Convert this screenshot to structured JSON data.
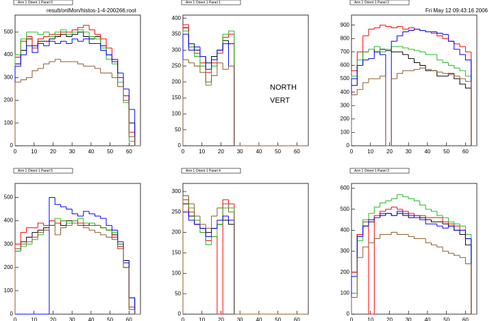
{
  "filename": "result/onlMon/histos-1-4-200266.root",
  "timestamp": "Fri May 12 09:43:16 2006",
  "annotations": [
    "NORTH",
    "VERT"
  ],
  "chart_data": [
    {
      "type": "histogram",
      "title": "Arm 1 Orient 1 Panel 0",
      "bins": [
        0,
        3,
        6,
        9,
        12,
        15,
        18,
        21,
        24,
        27,
        30,
        33,
        36,
        39,
        42,
        45,
        48,
        51,
        54,
        57,
        60,
        63,
        66
      ],
      "xlim": [
        0,
        66
      ],
      "ylim": [
        0,
        575
      ],
      "xticks": [
        0,
        10,
        20,
        30,
        40,
        50,
        60
      ],
      "yticks": [
        0,
        100,
        200,
        300,
        400,
        500
      ],
      "series": [
        {
          "color": "#000000",
          "values": [
            360,
            420,
            470,
            440,
            460,
            460,
            470,
            480,
            490,
            480,
            490,
            500,
            480,
            470,
            480,
            440,
            400,
            380,
            300,
            220,
            100,
            0
          ]
        },
        {
          "color": "#ff0000",
          "values": [
            390,
            460,
            480,
            430,
            470,
            480,
            490,
            490,
            500,
            500,
            510,
            520,
            530,
            510,
            490,
            470,
            430,
            380,
            300,
            220,
            60,
            0
          ]
        },
        {
          "color": "#22bb22",
          "values": [
            400,
            470,
            500,
            500,
            490,
            500,
            480,
            500,
            510,
            490,
            500,
            510,
            500,
            480,
            470,
            430,
            380,
            360,
            280,
            190,
            20,
            0
          ]
        },
        {
          "color": "#0000ff",
          "values": [
            350,
            400,
            440,
            410,
            450,
            440,
            460,
            450,
            460,
            450,
            470,
            460,
            470,
            450,
            450,
            420,
            400,
            370,
            320,
            250,
            160,
            0
          ]
        },
        {
          "color": "#8b5a2b",
          "values": [
            280,
            290,
            300,
            330,
            340,
            360,
            370,
            380,
            370,
            370,
            370,
            360,
            350,
            350,
            340,
            320,
            320,
            300,
            260,
            200,
            40,
            0
          ]
        }
      ]
    },
    {
      "type": "histogram",
      "title": "Arm 1 Orient 1 Panel 1",
      "bins": [
        0,
        3,
        6,
        9,
        12,
        15,
        18,
        21,
        24,
        27,
        30,
        33,
        36,
        39,
        42,
        45,
        48,
        51,
        54,
        57,
        60,
        63,
        66
      ],
      "xlim": [
        0,
        66
      ],
      "ylim": [
        0,
        410
      ],
      "xticks": [
        0,
        10,
        20,
        30,
        40,
        50,
        60
      ],
      "yticks": [
        0,
        50,
        100,
        150,
        200,
        250,
        300,
        350,
        400
      ],
      "series": [
        {
          "color": "#000000",
          "values": [
            370,
            320,
            300,
            280,
            260,
            280,
            300,
            330,
            320,
            0,
            0,
            0,
            0,
            0,
            0,
            0,
            0,
            0,
            0,
            0,
            0,
            0
          ]
        },
        {
          "color": "#ff0000",
          "values": [
            380,
            310,
            290,
            260,
            230,
            260,
            290,
            340,
            350,
            0,
            0,
            0,
            0,
            0,
            0,
            0,
            0,
            0,
            0,
            0,
            0,
            0
          ]
        },
        {
          "color": "#22bb22",
          "values": [
            360,
            310,
            280,
            250,
            190,
            250,
            300,
            350,
            360,
            0,
            0,
            0,
            0,
            0,
            0,
            0,
            0,
            0,
            0,
            0,
            0,
            0
          ]
        },
        {
          "color": "#0000ff",
          "values": [
            350,
            300,
            310,
            280,
            240,
            270,
            300,
            320,
            250,
            0,
            0,
            0,
            0,
            0,
            0,
            0,
            0,
            0,
            0,
            0,
            0,
            0
          ]
        },
        {
          "color": "#8b5a2b",
          "values": [
            270,
            260,
            250,
            230,
            200,
            220,
            260,
            240,
            250,
            0,
            0,
            0,
            0,
            0,
            0,
            0,
            0,
            0,
            0,
            0,
            0,
            0
          ]
        }
      ]
    },
    {
      "type": "histogram",
      "title": "Arm 1 Orient 1 Panel 2",
      "bins": [
        0,
        3,
        6,
        9,
        12,
        15,
        18,
        21,
        24,
        27,
        30,
        33,
        36,
        39,
        42,
        45,
        48,
        51,
        54,
        57,
        60,
        63,
        66
      ],
      "xlim": [
        0,
        66
      ],
      "ylim": [
        0,
        975
      ],
      "xticks": [
        0,
        10,
        20,
        30,
        40,
        50,
        60
      ],
      "yticks": [
        0,
        100,
        200,
        300,
        400,
        500,
        600,
        700,
        800,
        900
      ],
      "series": [
        {
          "color": "#000000",
          "values": [
            450,
            600,
            700,
            720,
            700,
            720,
            710,
            700,
            700,
            680,
            650,
            620,
            600,
            560,
            560,
            520,
            520,
            540,
            500,
            460,
            430,
            0
          ]
        },
        {
          "color": "#ff0000",
          "values": [
            560,
            700,
            820,
            870,
            880,
            900,
            890,
            880,
            890,
            870,
            880,
            870,
            860,
            850,
            840,
            820,
            800,
            780,
            760,
            740,
            700,
            0
          ]
        },
        {
          "color": "#22bb22",
          "values": [
            520,
            640,
            700,
            720,
            740,
            700,
            720,
            740,
            740,
            730,
            720,
            710,
            700,
            680,
            680,
            640,
            620,
            600,
            580,
            560,
            520,
            0
          ]
        },
        {
          "color": "#0000ff",
          "values": [
            500,
            600,
            640,
            650,
            700,
            680,
            0,
            780,
            820,
            850,
            860,
            870,
            860,
            850,
            850,
            840,
            830,
            780,
            720,
            680,
            640,
            0
          ]
        },
        {
          "color": "#8b5a2b",
          "values": [
            380,
            420,
            470,
            500,
            500,
            520,
            0,
            500,
            540,
            560,
            560,
            570,
            580,
            570,
            560,
            550,
            540,
            530,
            520,
            500,
            480,
            0
          ]
        }
      ]
    },
    {
      "type": "histogram",
      "title": "Arm 1 Orient 1 Panel 5",
      "bins": [
        0,
        3,
        6,
        9,
        12,
        15,
        18,
        21,
        24,
        27,
        30,
        33,
        36,
        39,
        42,
        45,
        48,
        51,
        54,
        57,
        60,
        63,
        66
      ],
      "xlim": [
        0,
        66
      ],
      "ylim": [
        0,
        560
      ],
      "xticks": [
        0,
        10,
        20,
        30,
        40,
        50,
        60
      ],
      "yticks": [
        0,
        100,
        200,
        300,
        400,
        500
      ],
      "series": [
        {
          "color": "#000000",
          "values": [
            270,
            310,
            330,
            350,
            360,
            370,
            380,
            390,
            380,
            400,
            390,
            380,
            380,
            390,
            380,
            370,
            360,
            340,
            300,
            230,
            70,
            0
          ]
        },
        {
          "color": "#ff0000",
          "values": [
            300,
            350,
            370,
            370,
            390,
            380,
            400,
            390,
            400,
            390,
            400,
            390,
            380,
            380,
            380,
            370,
            360,
            330,
            290,
            200,
            30,
            0
          ]
        },
        {
          "color": "#22bb22",
          "values": [
            270,
            290,
            300,
            320,
            340,
            360,
            380,
            410,
            400,
            390,
            400,
            410,
            390,
            390,
            380,
            370,
            360,
            350,
            300,
            200,
            20,
            0
          ]
        },
        {
          "color": "#0000ff",
          "values": [
            0,
            0,
            0,
            0,
            0,
            0,
            500,
            470,
            460,
            450,
            430,
            420,
            440,
            430,
            420,
            410,
            380,
            360,
            310,
            220,
            70,
            0
          ]
        },
        {
          "color": "#8b5a2b",
          "values": [
            280,
            300,
            310,
            330,
            350,
            360,
            380,
            340,
            370,
            380,
            390,
            380,
            370,
            360,
            350,
            340,
            330,
            320,
            280,
            200,
            20,
            0
          ]
        }
      ]
    },
    {
      "type": "histogram",
      "title": "Arm 1 Orient 1 Panel 4",
      "bins": [
        0,
        3,
        6,
        9,
        12,
        15,
        18,
        21,
        24,
        27,
        30,
        33,
        36,
        39,
        42,
        45,
        48,
        51,
        54,
        57,
        60,
        63,
        66
      ],
      "xlim": [
        0,
        66
      ],
      "ylim": [
        0,
        320
      ],
      "xticks": [
        0,
        10,
        20,
        30,
        40,
        50,
        60
      ],
      "yticks": [
        0,
        50,
        100,
        150,
        200,
        250,
        300
      ],
      "series": [
        {
          "color": "#000000",
          "values": [
            270,
            240,
            220,
            210,
            200,
            210,
            220,
            230,
            220,
            0,
            0,
            0,
            0,
            0,
            0,
            0,
            0,
            0,
            0,
            0,
            0,
            0
          ]
        },
        {
          "color": "#ff0000",
          "values": [
            280,
            250,
            220,
            200,
            180,
            190,
            0,
            280,
            270,
            0,
            0,
            0,
            0,
            0,
            0,
            0,
            0,
            0,
            0,
            0,
            0,
            0
          ]
        },
        {
          "color": "#22bb22",
          "values": [
            290,
            260,
            230,
            200,
            170,
            190,
            220,
            260,
            260,
            0,
            0,
            0,
            0,
            0,
            0,
            0,
            0,
            0,
            0,
            0,
            0,
            0
          ]
        },
        {
          "color": "#0000ff",
          "values": [
            250,
            230,
            220,
            210,
            190,
            210,
            230,
            240,
            230,
            0,
            0,
            0,
            0,
            0,
            0,
            0,
            0,
            0,
            0,
            0,
            0,
            0
          ]
        },
        {
          "color": "#8b5a2b",
          "values": [
            290,
            270,
            240,
            220,
            210,
            240,
            260,
            270,
            250,
            0,
            0,
            0,
            0,
            0,
            0,
            0,
            0,
            0,
            0,
            0,
            0,
            0
          ]
        }
      ]
    },
    {
      "type": "histogram",
      "title": "Arm 1 Orient 1 Panel 3",
      "bins": [
        0,
        3,
        6,
        9,
        12,
        15,
        18,
        21,
        24,
        27,
        30,
        33,
        36,
        39,
        42,
        45,
        48,
        51,
        54,
        57,
        60,
        63,
        66
      ],
      "xlim": [
        0,
        66
      ],
      "ylim": [
        0,
        623
      ],
      "xticks": [
        0,
        10,
        20,
        30,
        40,
        50,
        60
      ],
      "yticks": [
        0,
        100,
        200,
        300,
        400,
        500,
        600
      ],
      "series": [
        {
          "color": "#000000",
          "values": [
            200,
            380,
            420,
            440,
            460,
            470,
            480,
            470,
            480,
            470,
            460,
            470,
            460,
            450,
            440,
            440,
            430,
            420,
            400,
            380,
            330,
            0
          ]
        },
        {
          "color": "#ff0000",
          "values": [
            200,
            380,
            440,
            0,
            470,
            490,
            500,
            510,
            500,
            490,
            480,
            470,
            470,
            460,
            460,
            460,
            440,
            430,
            420,
            400,
            360,
            0
          ]
        },
        {
          "color": "#22bb22",
          "values": [
            100,
            350,
            450,
            480,
            510,
            530,
            540,
            550,
            570,
            560,
            550,
            540,
            520,
            500,
            490,
            470,
            460,
            440,
            430,
            420,
            380,
            0
          ]
        },
        {
          "color": "#0000ff",
          "values": [
            180,
            370,
            420,
            450,
            460,
            480,
            480,
            470,
            490,
            480,
            470,
            460,
            450,
            430,
            430,
            420,
            410,
            420,
            400,
            400,
            360,
            0
          ]
        },
        {
          "color": "#8b5a2b",
          "values": [
            80,
            270,
            320,
            340,
            360,
            380,
            380,
            390,
            380,
            380,
            370,
            360,
            360,
            340,
            330,
            320,
            300,
            290,
            280,
            270,
            240,
            0
          ]
        }
      ]
    }
  ]
}
